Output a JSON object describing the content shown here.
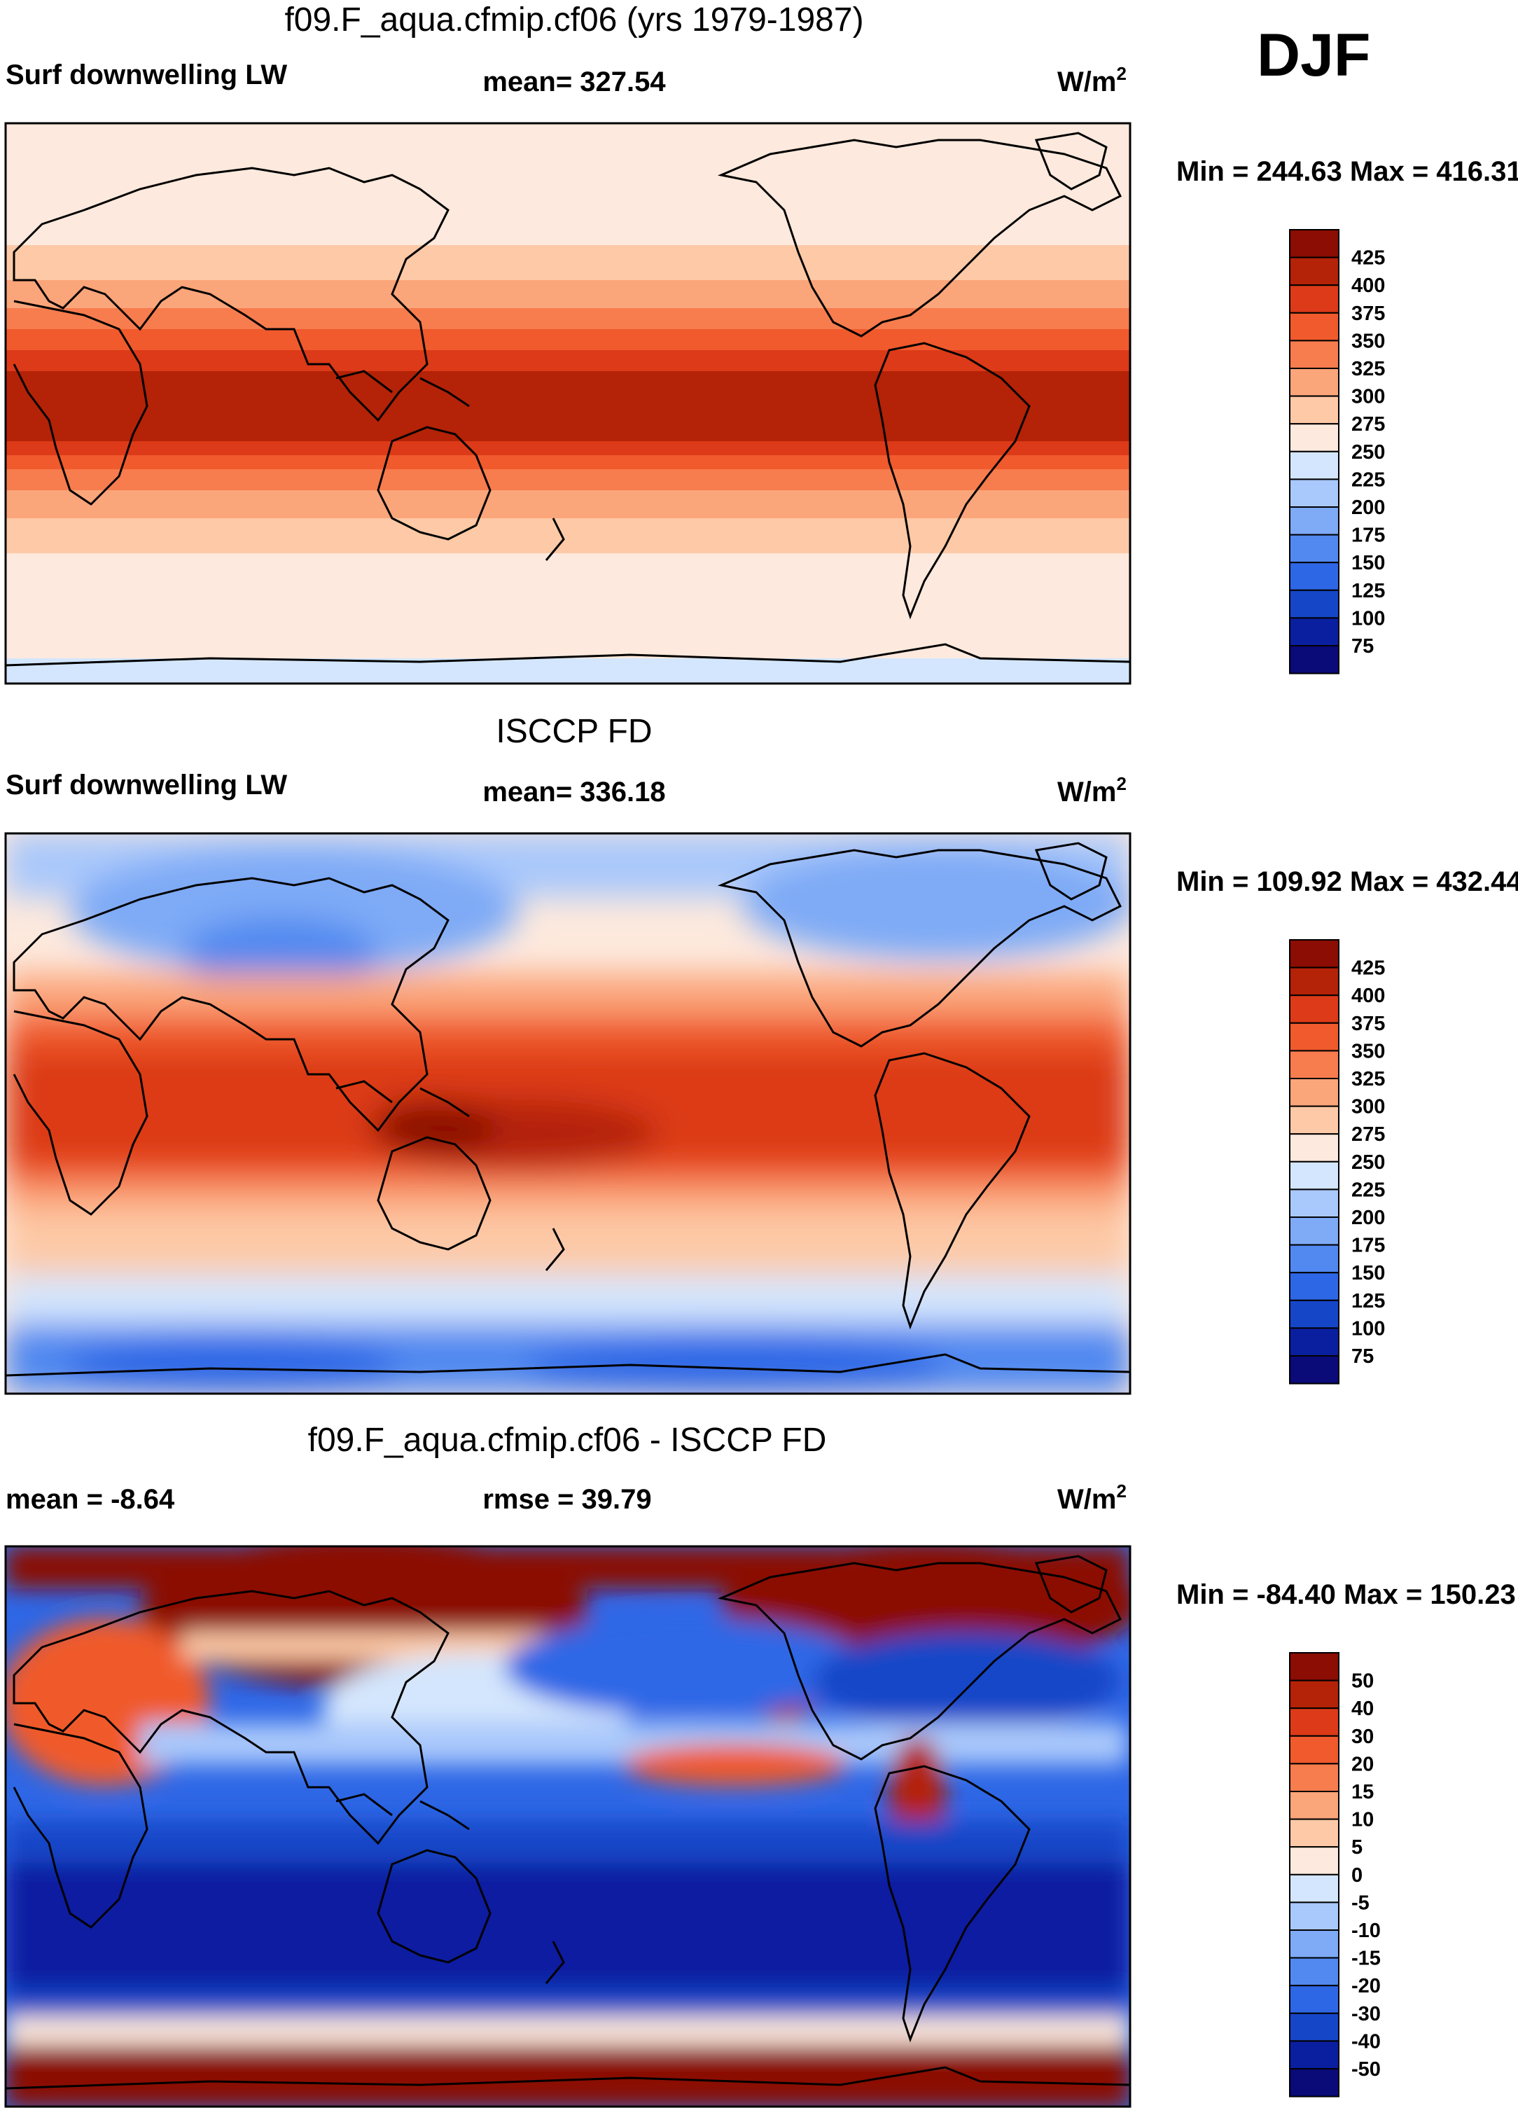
{
  "season_label": "DJF",
  "colors": {
    "abs_scale": [
      "#0a0a78",
      "#0a1fa0",
      "#1646c8",
      "#2e67e6",
      "#5189f0",
      "#7eaaf6",
      "#a9c8fb",
      "#d4e6fd",
      "#fde9dd",
      "#fdc9a6",
      "#fba57a",
      "#f77c4e",
      "#f05a2c",
      "#dc3a18",
      "#b42207",
      "#8b0d03"
    ],
    "diff_scale": [
      "#0a0a78",
      "#0a1fa0",
      "#1646c8",
      "#2e67e6",
      "#5189f0",
      "#7eaaf6",
      "#a9c8fb",
      "#d4e6fd",
      "#fde9dd",
      "#fdc9a6",
      "#fba57a",
      "#f77c4e",
      "#f05a2c",
      "#dc3a18",
      "#b42207",
      "#8b0d03"
    ],
    "coast": "#000000"
  },
  "chart_data": [
    {
      "type": "heatmap",
      "title": "f09.F_aqua.cfmip.cf06 (yrs 1979-1987)",
      "left_label": "Surf downwelling LW",
      "center_label": "mean= 327.54",
      "units_base": "W/m",
      "units_exp": "2",
      "range_label": "Min = 244.63 Max = 416.31",
      "min": 244.63,
      "max": 416.31,
      "mean": 327.54,
      "colorbar_ticks": [
        "425",
        "400",
        "375",
        "350",
        "325",
        "300",
        "275",
        "250",
        "225",
        "200",
        "175",
        "150",
        "125",
        "100",
        "75"
      ],
      "xlim": [
        0,
        360
      ],
      "ylim": [
        -90,
        90
      ]
    },
    {
      "type": "heatmap",
      "title": "ISCCP FD",
      "left_label": "Surf downwelling LW",
      "center_label": "mean= 336.18",
      "units_base": "W/m",
      "units_exp": "2",
      "range_label": "Min = 109.92 Max = 432.44",
      "min": 109.92,
      "max": 432.44,
      "mean": 336.18,
      "colorbar_ticks": [
        "425",
        "400",
        "375",
        "350",
        "325",
        "300",
        "275",
        "250",
        "225",
        "200",
        "175",
        "150",
        "125",
        "100",
        "75"
      ],
      "xlim": [
        0,
        360
      ],
      "ylim": [
        -90,
        90
      ]
    },
    {
      "type": "heatmap",
      "title": "f09.F_aqua.cfmip.cf06 - ISCCP FD",
      "left_label": "mean =  -8.64",
      "center_label": "rmse =  39.79",
      "units_base": "W/m",
      "units_exp": "2",
      "range_label": "Min = -84.40 Max = 150.23",
      "min": -84.4,
      "max": 150.23,
      "mean": -8.64,
      "rmse": 39.79,
      "colorbar_ticks": [
        "50",
        "40",
        "30",
        "20",
        "15",
        "10",
        "5",
        "0",
        "-5",
        "-10",
        "-15",
        "-20",
        "-30",
        "-40",
        "-50"
      ],
      "xlim": [
        0,
        360
      ],
      "ylim": [
        -90,
        90
      ]
    }
  ]
}
